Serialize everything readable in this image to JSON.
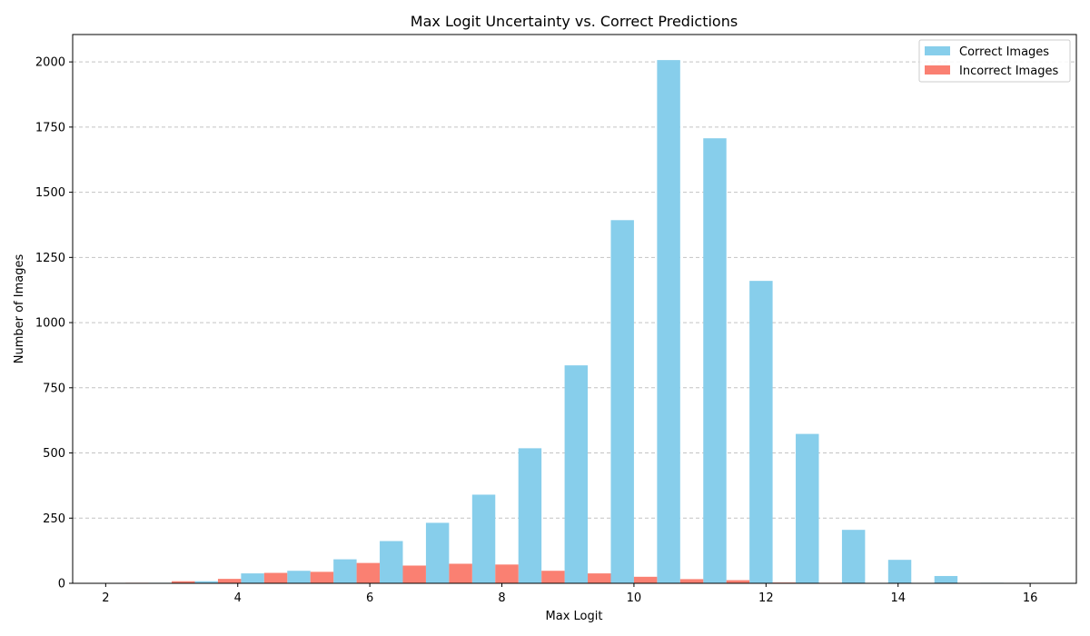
{
  "chart_data": {
    "type": "bar",
    "title": "Max Logit Uncertainty vs. Correct Predictions",
    "xlabel": "Max Logit",
    "ylabel": "Number of Images",
    "xlim": [
      1.5,
      16.7
    ],
    "ylim": [
      0,
      2105
    ],
    "xticks": [
      2,
      4,
      6,
      8,
      10,
      12,
      14,
      16
    ],
    "yticks": [
      0,
      250,
      500,
      750,
      1000,
      1250,
      1500,
      1750,
      2000
    ],
    "grid": "y-dashed",
    "legend_position": "top-right",
    "bin_width": 0.7,
    "x": [
      2.3,
      3.0,
      3.7,
      4.4,
      5.1,
      5.8,
      6.5,
      7.2,
      7.9,
      8.6,
      9.3,
      10.0,
      10.7,
      11.4,
      12.1,
      12.8,
      13.5,
      14.2,
      14.9,
      15.6
    ],
    "series": [
      {
        "name": "Correct Images",
        "color": "#87ceeb",
        "values": [
          1,
          2,
          8,
          38,
          48,
          92,
          162,
          232,
          340,
          518,
          836,
          1393,
          2007,
          1707,
          1160,
          573,
          205,
          90,
          28,
          2
        ]
      },
      {
        "name": "Incorrect Images",
        "color": "#fa8072",
        "values": [
          2,
          8,
          17,
          40,
          44,
          78,
          68,
          75,
          72,
          48,
          38,
          25,
          16,
          12,
          3,
          2,
          1,
          1,
          1,
          0
        ]
      }
    ]
  }
}
